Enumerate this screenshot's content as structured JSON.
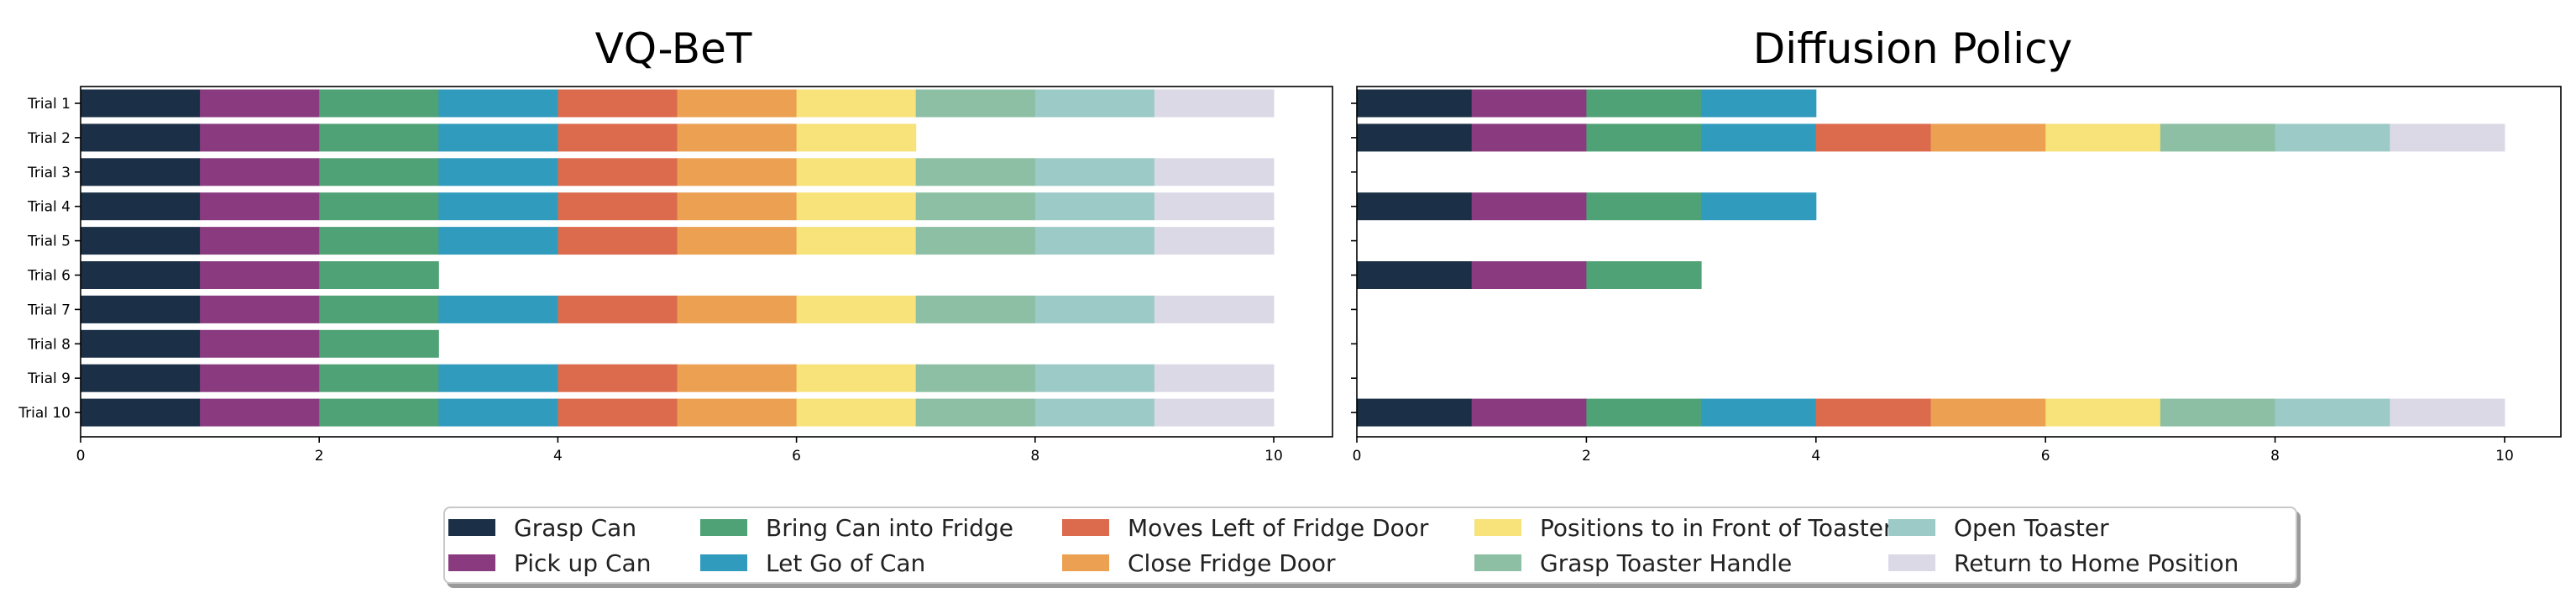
{
  "chart_data": [
    {
      "type": "bar",
      "orientation": "horizontal-stacked",
      "title": "VQ-BeT",
      "categories": [
        "Trial 1",
        "Trial 2",
        "Trial 3",
        "Trial 4",
        "Trial 5",
        "Trial 6",
        "Trial 7",
        "Trial 8",
        "Trial 9",
        "Trial 10"
      ],
      "stages_completed": [
        10,
        7,
        10,
        10,
        10,
        3,
        10,
        3,
        10,
        10
      ],
      "segment_width": 1,
      "xlim": [
        0,
        10.5
      ],
      "xticks": [
        0,
        2,
        4,
        6,
        8,
        10
      ],
      "xlabel": "",
      "ylabel": "",
      "grid": false
    },
    {
      "type": "bar",
      "orientation": "horizontal-stacked",
      "title": "Diffusion Policy",
      "categories": [
        "Trial 1",
        "Trial 2",
        "Trial 3",
        "Trial 4",
        "Trial 5",
        "Trial 6",
        "Trial 7",
        "Trial 8",
        "Trial 9",
        "Trial 10"
      ],
      "stages_completed": [
        4,
        10,
        0,
        4,
        0,
        3,
        0,
        0,
        0,
        10
      ],
      "segment_width": 1,
      "xlim": [
        0,
        10.5
      ],
      "xticks": [
        0,
        2,
        4,
        6,
        8,
        10
      ],
      "xlabel": "",
      "ylabel": "",
      "grid": false
    }
  ],
  "legend": {
    "placement": "bottom-center",
    "entries": [
      {
        "name": "Grasp Can",
        "color": "#1b3046"
      },
      {
        "name": "Pick up Can",
        "color": "#8a3b80"
      },
      {
        "name": "Bring Can into Fridge",
        "color": "#4fa276"
      },
      {
        "name": "Let Go of Can",
        "color": "#319bbe"
      },
      {
        "name": "Moves Left of Fridge Door",
        "color": "#dc6a4d"
      },
      {
        "name": "Close Fridge Door",
        "color": "#eca052"
      },
      {
        "name": "Positions to in Front of Toaster",
        "color": "#f8e27a"
      },
      {
        "name": "Grasp Toaster Handle",
        "color": "#8cbfa3"
      },
      {
        "name": "Open Toaster",
        "color": "#9ccac7"
      },
      {
        "name": "Return to Home Position",
        "color": "#dcd9e7"
      }
    ]
  }
}
